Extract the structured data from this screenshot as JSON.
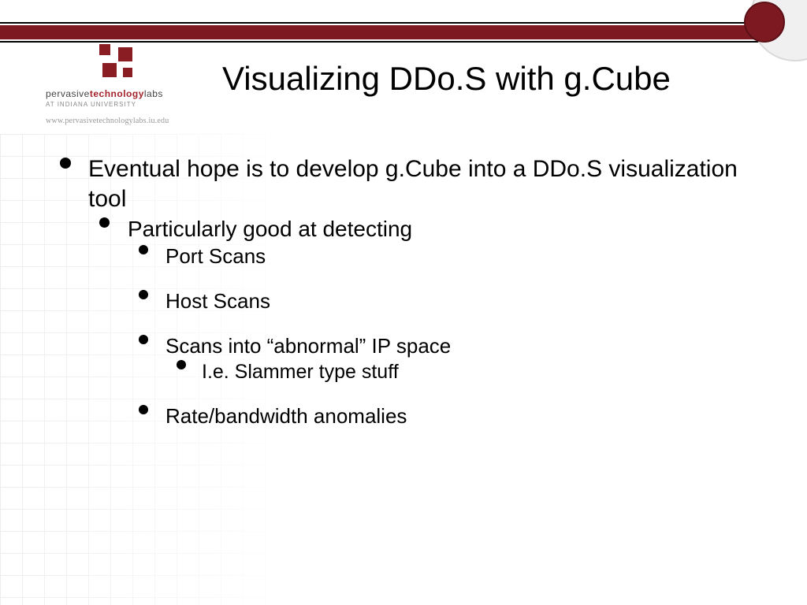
{
  "colors": {
    "accent": "#7d1a21",
    "rule": "#000000",
    "grid": "#ededed",
    "text": "#000000",
    "logo_red": "#a4242b",
    "background": "#ffffff"
  },
  "typography": {
    "title_fontsize": 42,
    "b0_fontsize": 30,
    "b1_fontsize": 28,
    "b2_fontsize": 26,
    "b3_fontsize": 25,
    "font_family": "Arial"
  },
  "logo": {
    "line1_a": "pervasive",
    "line1_b": "technology",
    "line1_c": "labs",
    "subline": "AT INDIANA UNIVERSITY",
    "url": "www.pervasivetechnologylabs.iu.edu"
  },
  "title": "Visualizing DDo.S with g.Cube",
  "bullets": {
    "b0_0": "Eventual hope is to develop g.Cube into a DDo.S visualization tool",
    "b1_0": "Particularly good at detecting",
    "b2_0": "Port Scans",
    "b2_1": "Host Scans",
    "b2_2": "Scans into “abnormal” IP space",
    "b3_0": "I.e. Slammer type stuff",
    "b2_3": "Rate/bandwidth anomalies"
  }
}
